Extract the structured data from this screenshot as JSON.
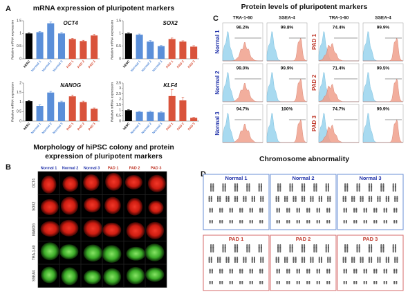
{
  "panel_a": {
    "label": "A",
    "title": "mRNA expression of pluripotent markers"
  },
  "chart_data": [
    {
      "type": "bar",
      "title": "OCT4",
      "y_label": "Relative mRNA expression",
      "categories": [
        "hESC",
        "Normal 1",
        "Normal 2",
        "Normal 3",
        "PAD 1",
        "PAD 2",
        "PAD 3"
      ],
      "colors": [
        "#000000",
        "#5b8fd9",
        "#5b8fd9",
        "#5b8fd9",
        "#d9533b",
        "#d9533b",
        "#d9533b"
      ],
      "values": [
        1.0,
        1.05,
        1.4,
        1.0,
        0.78,
        0.7,
        0.92
      ],
      "errors": [
        0.02,
        0.03,
        0.05,
        0.04,
        0.03,
        0.03,
        0.05
      ],
      "ylim": [
        0,
        1.5
      ],
      "yticks": [
        0,
        0.5,
        1,
        1.5
      ]
    },
    {
      "type": "bar",
      "title": "SOX2",
      "y_label": "Relative mRNA expression",
      "categories": [
        "hESC",
        "Normal 1",
        "Normal 2",
        "Normal 3",
        "PAD 1",
        "PAD 2",
        "PAD 3"
      ],
      "colors": [
        "#000000",
        "#5b8fd9",
        "#5b8fd9",
        "#5b8fd9",
        "#d9533b",
        "#d9533b",
        "#d9533b"
      ],
      "values": [
        1.0,
        0.95,
        0.68,
        0.5,
        0.78,
        0.68,
        0.48
      ],
      "errors": [
        0.02,
        0.03,
        0.04,
        0.03,
        0.04,
        0.03,
        0.04
      ],
      "ylim": [
        0,
        1.5
      ],
      "yticks": [
        0,
        0.5,
        1,
        1.5
      ]
    },
    {
      "type": "bar",
      "title": "NANOG",
      "y_label": "Relative mRNA expression",
      "categories": [
        "hESC",
        "Normal 1",
        "Normal 2",
        "Normal 3",
        "PAD 1",
        "PAD 2",
        "PAD 3"
      ],
      "colors": [
        "#000000",
        "#5b8fd9",
        "#5b8fd9",
        "#5b8fd9",
        "#d9533b",
        "#d9533b",
        "#d9533b"
      ],
      "values": [
        1.05,
        0.8,
        1.5,
        1.0,
        1.3,
        1.0,
        0.65
      ],
      "errors": [
        0.03,
        0.05,
        0.06,
        0.05,
        0.07,
        0.05,
        0.04
      ],
      "ylim": [
        0,
        2
      ],
      "yticks": [
        0,
        0.5,
        1,
        1.5,
        2
      ]
    },
    {
      "type": "bar",
      "title": "KLF4",
      "y_label": "Relative mRNA expression",
      "categories": [
        "hESC",
        "Normal 1",
        "Normal 2",
        "Normal 3",
        "PAD 1",
        "PAD 2",
        "PAD 3"
      ],
      "colors": [
        "#000000",
        "#5b8fd9",
        "#5b8fd9",
        "#5b8fd9",
        "#d9533b",
        "#d9533b",
        "#d9533b"
      ],
      "values": [
        1.0,
        0.85,
        0.85,
        0.8,
        2.3,
        1.9,
        0.3
      ],
      "errors": [
        0.05,
        0.04,
        0.06,
        0.05,
        0.6,
        0.3,
        0.05
      ],
      "ylim": [
        0,
        3.5
      ],
      "yticks": [
        0,
        0.5,
        1,
        1.5,
        2,
        2.5,
        3,
        3.5
      ]
    }
  ],
  "panel_c": {
    "label": "C",
    "title": "Protein levels of pluripotent markers",
    "column_headers": [
      "TRA-1-60",
      "SSEA-4",
      "TRA-1-60",
      "SSEA-4"
    ],
    "rows": [
      {
        "label": "Normal 1",
        "percentages": [
          "96.2%",
          "99.8%"
        ]
      },
      {
        "label": "Normal 2",
        "percentages": [
          "99.0%",
          "99.9%"
        ]
      },
      {
        "label": "Normal 3",
        "percentages": [
          "94.7%",
          "100%"
        ]
      },
      {
        "label": "PAD 1",
        "percentages": [
          "74.4%",
          "99.9%"
        ]
      },
      {
        "label": "PAD 2",
        "percentages": [
          "71.4%",
          "99.5%"
        ]
      },
      {
        "label": "PAD 3",
        "percentages": [
          "74.7%",
          "99.9%"
        ]
      }
    ]
  },
  "panel_b": {
    "label": "B",
    "title_lines": [
      "Morphology of hiPSC colony and protein",
      "expression of pluripotent markers"
    ],
    "columns": [
      "Normal 1",
      "Normal 2",
      "Normal 3",
      "PAD 1",
      "PAD 2",
      "PAD 3"
    ],
    "rows": [
      "OCT4",
      "SOX2",
      "NANOG",
      "TRA-1-60",
      "SSEA4"
    ]
  },
  "panel_d": {
    "label": "D",
    "title": "Chromosome abnormality",
    "karyotypes": [
      "Normal 1",
      "Normal 2",
      "Normal 3",
      "PAD 1",
      "PAD 2",
      "PAD 3"
    ]
  }
}
